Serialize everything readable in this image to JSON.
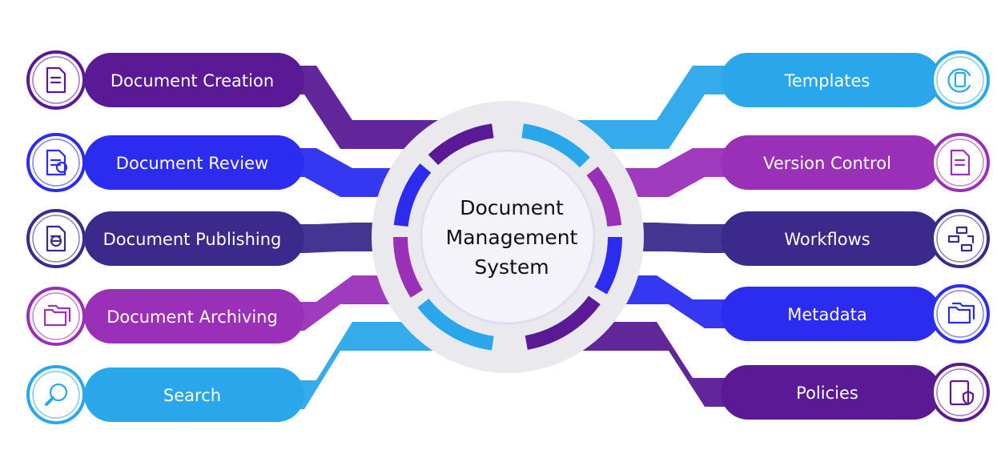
{
  "center": {
    "lines": [
      "Document",
      "Management",
      "System"
    ]
  },
  "colors": {
    "dark_purple": "#5a1a96",
    "violet": "#6f2cbd",
    "blue": "#2b2cf0",
    "indigo": "#3b2a8c",
    "magenta": "#9a30b8",
    "sky": "#2aa6ea",
    "ring": "#eaeaee"
  },
  "left_items": [
    {
      "label": "Document Creation",
      "color": "dark_purple",
      "icon": "document-idea-icon"
    },
    {
      "label": "Document Review",
      "color": "blue",
      "icon": "document-search-icon"
    },
    {
      "label": "Document Publishing",
      "color": "indigo",
      "icon": "document-globe-icon"
    },
    {
      "label": "Document Archiving",
      "color": "magenta",
      "icon": "folder-shield-icon"
    },
    {
      "label": "Search",
      "color": "sky",
      "icon": "magnifier-icon"
    }
  ],
  "right_items": [
    {
      "label": "Templates",
      "color": "sky",
      "icon": "refresh-document-icon"
    },
    {
      "label": "Version Control",
      "color": "magenta",
      "icon": "document-versions-icon"
    },
    {
      "label": "Workflows",
      "color": "indigo",
      "icon": "workflow-icon"
    },
    {
      "label": "Metadata",
      "color": "blue",
      "icon": "folders-icon"
    },
    {
      "label": "Policies",
      "color": "dark_purple",
      "icon": "clipboard-shield-icon"
    }
  ]
}
